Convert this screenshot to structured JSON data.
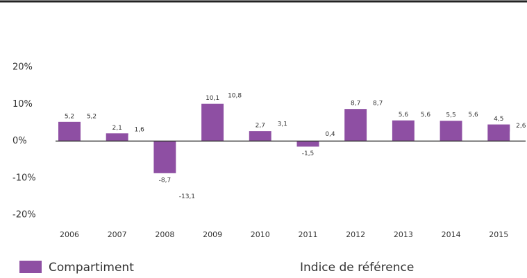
{
  "chart_data": {
    "type": "bar",
    "categories": [
      "2006",
      "2007",
      "2008",
      "2009",
      "2010",
      "2011",
      "2012",
      "2013",
      "2014",
      "2015"
    ],
    "series": [
      {
        "name": "Compartiment",
        "color": "#8e4fa3",
        "values": [
          5.2,
          2.1,
          -8.7,
          10.1,
          2.7,
          -1.5,
          8.7,
          5.6,
          5.5,
          4.5
        ],
        "value_labels": [
          "5,2",
          "2,1",
          "-8,7",
          "10,1",
          "2,7",
          "-1,5",
          "8,7",
          "5,6",
          "5,5",
          "4,5"
        ]
      },
      {
        "name": "Indice de référence",
        "color": "#ffffff",
        "values": [
          5.2,
          1.6,
          -13.1,
          10.8,
          3.1,
          0.4,
          8.7,
          5.6,
          5.6,
          2.6
        ],
        "value_labels": [
          "5,2",
          "1,6",
          "-13,1",
          "10,8",
          "3,1",
          "0,4",
          "8,7",
          "5,6",
          "5,6",
          "2,6"
        ]
      }
    ],
    "ylim": [
      -20,
      20
    ],
    "yticks": [
      {
        "value": 20,
        "label": "20%"
      },
      {
        "value": 10,
        "label": "10%"
      },
      {
        "value": 0,
        "label": "0%"
      },
      {
        "value": -10,
        "label": "-10%"
      },
      {
        "value": -20,
        "label": "-20%"
      }
    ],
    "legend": "bottom"
  }
}
